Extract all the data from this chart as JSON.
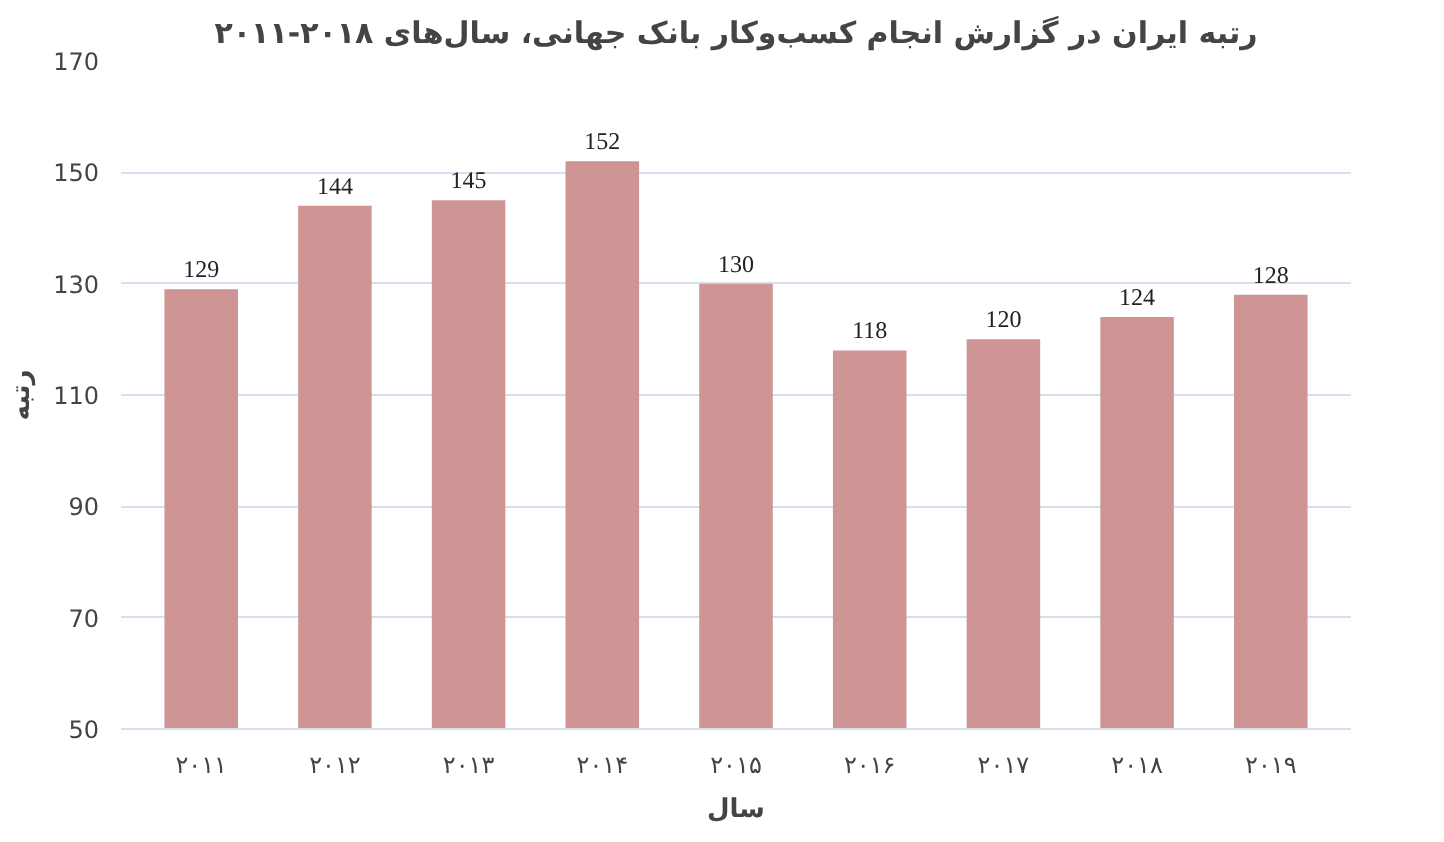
{
  "chart_data": {
    "type": "bar",
    "title": "رتبه ایران در گزارش انجام کسب‌وکار بانک جهانی، سال‌های ۲۰۱۸-۲۰۱۱",
    "xlabel": "سال",
    "ylabel": "رتبه",
    "categories": [
      "۲۰۱۱",
      "۲۰۱۲",
      "۲۰۱۳",
      "۲۰۱۴",
      "۲۰۱۵",
      "۲۰۱۶",
      "۲۰۱۷",
      "۲۰۱۸",
      "۲۰۱۹"
    ],
    "values": [
      129,
      144,
      145,
      152,
      130,
      118,
      120,
      124,
      128
    ],
    "color": "#cf9494",
    "ylim": [
      50,
      170
    ],
    "yticks": [
      50,
      70,
      90,
      110,
      130,
      150,
      170
    ],
    "grid": "y",
    "data_labels": true
  }
}
